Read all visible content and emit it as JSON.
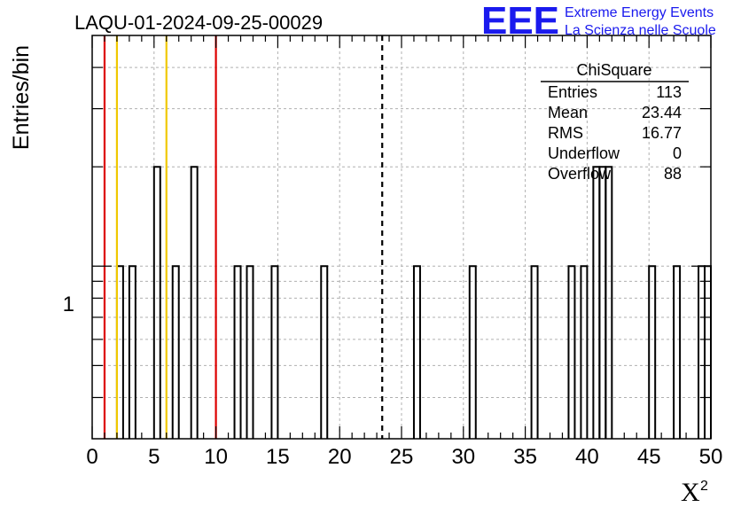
{
  "chart_data": {
    "type": "bar",
    "title": "LAQU-01-2024-09-25-00029",
    "xlabel": "X",
    "xlabel_superscript": "2",
    "ylabel": "Entries/bin",
    "xlim": [
      0,
      50
    ],
    "ylim_log": [
      0.3,
      5
    ],
    "y_scale": "log",
    "y_tick_label": "1",
    "x_ticks": [
      0,
      5,
      10,
      15,
      20,
      25,
      30,
      35,
      40,
      45,
      50
    ],
    "x_tick_labels": [
      "0",
      "5",
      "10",
      "15",
      "20",
      "25",
      "30",
      "35",
      "40",
      "45",
      "50"
    ],
    "bin_width": 0.5,
    "bins": [
      {
        "x0": 2.0,
        "count": 1
      },
      {
        "x0": 3.0,
        "count": 1
      },
      {
        "x0": 5.0,
        "count": 2
      },
      {
        "x0": 6.5,
        "count": 1
      },
      {
        "x0": 8.0,
        "count": 2
      },
      {
        "x0": 11.5,
        "count": 1
      },
      {
        "x0": 12.5,
        "count": 1
      },
      {
        "x0": 14.5,
        "count": 1
      },
      {
        "x0": 18.5,
        "count": 1
      },
      {
        "x0": 26.0,
        "count": 1
      },
      {
        "x0": 30.5,
        "count": 1
      },
      {
        "x0": 35.5,
        "count": 1
      },
      {
        "x0": 38.5,
        "count": 1
      },
      {
        "x0": 39.5,
        "count": 1
      },
      {
        "x0": 40.5,
        "count": 2
      },
      {
        "x0": 41.0,
        "count": 2
      },
      {
        "x0": 41.5,
        "count": 2
      },
      {
        "x0": 45.0,
        "count": 1
      },
      {
        "x0": 47.0,
        "count": 1
      },
      {
        "x0": 49.0,
        "count": 1
      },
      {
        "x0": 49.5,
        "count": 1
      }
    ],
    "vertical_lines": [
      {
        "x": 1,
        "color": "#dd0000",
        "style": "solid"
      },
      {
        "x": 2,
        "color": "#f0c800",
        "style": "solid"
      },
      {
        "x": 6,
        "color": "#f0c800",
        "style": "solid"
      },
      {
        "x": 10,
        "color": "#dd0000",
        "style": "solid"
      },
      {
        "x": 23.44,
        "color": "#000000",
        "style": "dashed"
      }
    ],
    "grid": true,
    "stats_box": {
      "title": "ChiSquare",
      "rows": [
        {
          "label": "Entries",
          "value": "113"
        },
        {
          "label": "Mean",
          "value": "23.44"
        },
        {
          "label": "RMS",
          "value": "16.77"
        },
        {
          "label": "Underflow",
          "value": "0"
        },
        {
          "label": "Overflow",
          "value": "88"
        }
      ],
      "placement": "top-right"
    }
  },
  "logo": {
    "text": "EEE",
    "line1": "Extreme Energy Events",
    "line2": "La Scienza nelle Scuole",
    "color": "#1a1aee"
  }
}
